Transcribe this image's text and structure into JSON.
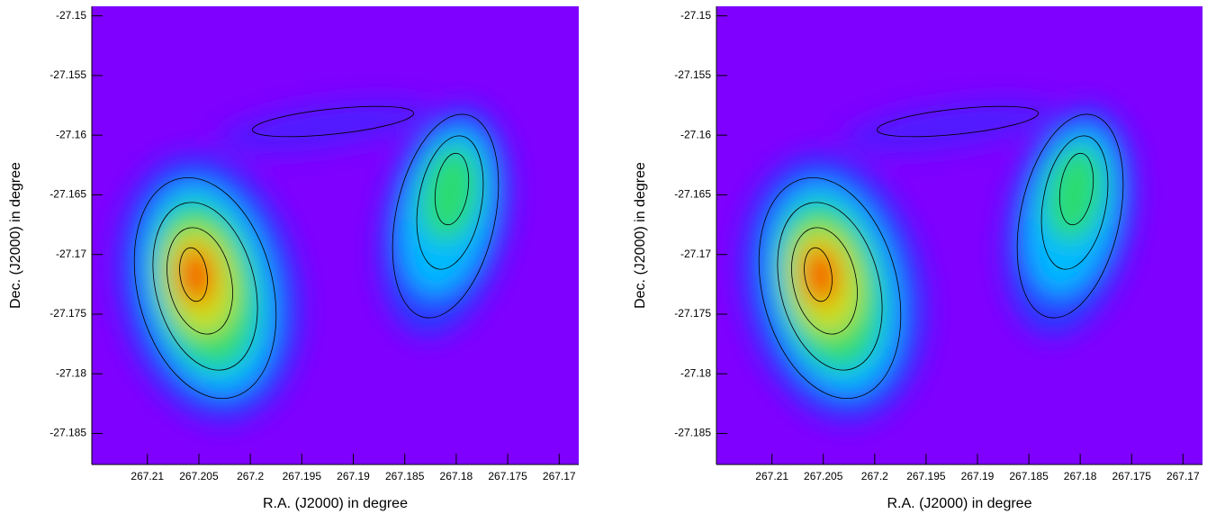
{
  "chart_data": [
    {
      "type": "heatmap",
      "xlabel": "R.A. (J2000) in degree",
      "ylabel": "Dec. (J2000) in degree",
      "xlim": [
        267.2154,
        267.1681
      ],
      "ylim": [
        -27.1876,
        -27.1492
      ],
      "xticks": [
        267.21,
        267.205,
        267.2,
        267.195,
        267.19,
        267.185,
        267.18,
        267.175,
        267.17
      ],
      "yticks": [
        -27.15,
        -27.155,
        -27.16,
        -27.165,
        -27.17,
        -27.175,
        -27.18,
        -27.185
      ],
      "background_color": "#7f00ff"
    },
    {
      "type": "heatmap",
      "xlabel": "R.A. (J2000) in degree",
      "ylabel": "Dec. (J2000) in degree",
      "xlim": [
        267.2154,
        267.1681
      ],
      "ylim": [
        -27.1876,
        -27.1492
      ],
      "xticks": [
        267.21,
        267.205,
        267.2,
        267.195,
        267.19,
        267.185,
        267.18,
        267.175,
        267.17
      ],
      "yticks": [
        -27.15,
        -27.155,
        -27.16,
        -27.165,
        -27.17,
        -27.175,
        -27.18,
        -27.185
      ],
      "background_color": "#7f00ff"
    }
  ]
}
